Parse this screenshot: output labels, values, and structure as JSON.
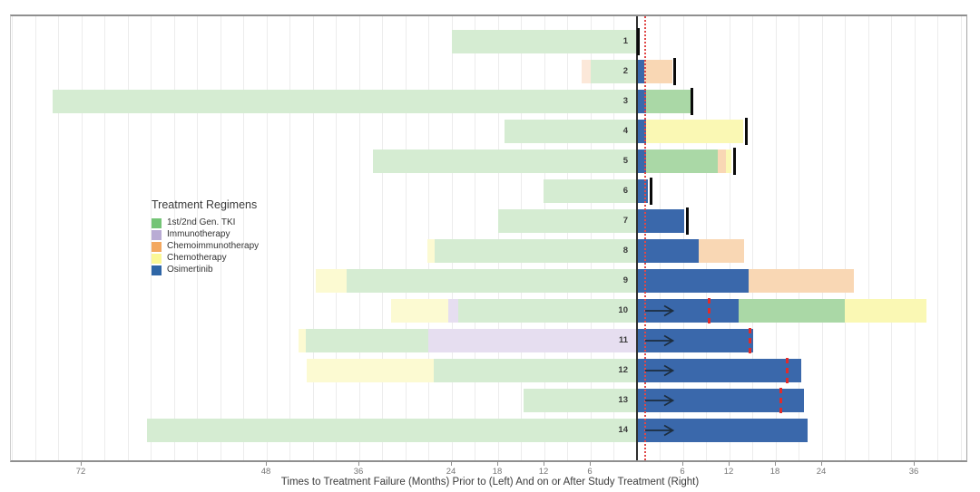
{
  "chart_data": {
    "type": "swimmer",
    "xlabel": "Times to Treatment Failure (Months) Prior to (Left) And on or After Study Treatment (Right)",
    "x_axis": {
      "left_tick_labels": [
        72,
        48,
        36,
        24,
        18,
        12,
        6
      ],
      "right_tick_labels": [
        6,
        12,
        18,
        24,
        36
      ],
      "range_months": [
        -81.2,
        42.9
      ],
      "minor_grid_step_months": 3,
      "zero_line_month": 0,
      "reference_line_month": 1,
      "grid": true
    },
    "legend": {
      "title": "Treatment Regimens",
      "position": "middle-left",
      "items": [
        {
          "key": "tki",
          "label": "1st/2nd Gen. TKI"
        },
        {
          "key": "immunotherapy",
          "label": "Immunotherapy"
        },
        {
          "key": "chemoimmunotherapy",
          "label": "Chemoimmunotherapy"
        },
        {
          "key": "chemotherapy",
          "label": "Chemotherapy"
        },
        {
          "key": "osimertinib",
          "label": "Osimertinib"
        }
      ]
    },
    "colors": {
      "legend": {
        "tki": "#74c476",
        "immunotherapy": "#b9abd4",
        "chemoimmunotherapy": "#f3a860",
        "chemotherapy": "#fbf896",
        "osimertinib": "#2f66a6"
      },
      "prior": {
        "tki": "#d5ecd2",
        "immunotherapy": "#e6def0",
        "chemoimmunotherapy": "#fce8d9",
        "chemotherapy": "#fcfad2",
        "osimertinib": "#3a68ab"
      },
      "post": {
        "tki": "#aad8a6",
        "immunotherapy": "#cfc3e2",
        "chemoimmunotherapy": "#f9d7b4",
        "chemotherapy": "#faf8b4",
        "osimertinib": "#3a68ab"
      },
      "end_tick": "#0a0a0a",
      "progression_dash": "#e02b2b",
      "reference_line": "#e04848",
      "zero_line": "#2e2e2e",
      "grid": "#ececec",
      "arrow": "#1d2d3e"
    },
    "patients": [
      {
        "id": "1",
        "prior": [
          {
            "regimen": "tki",
            "from": -24,
            "to": 0
          }
        ],
        "post": [],
        "end_tick": 0.2,
        "arrow": false,
        "progression": null
      },
      {
        "id": "2",
        "prior": [
          {
            "regimen": "chemoimmunotherapy",
            "from": -7.2,
            "to": -6
          },
          {
            "regimen": "tki",
            "from": -6,
            "to": 0
          }
        ],
        "post": [
          {
            "regimen": "osimertinib",
            "from": 0,
            "to": 0.9
          },
          {
            "regimen": "chemoimmunotherapy",
            "from": 0.9,
            "to": 4.6
          }
        ],
        "end_tick": 4.9,
        "arrow": false,
        "progression": null
      },
      {
        "id": "3",
        "prior": [
          {
            "regimen": "tki",
            "from": -75.8,
            "to": 0
          }
        ],
        "post": [
          {
            "regimen": "osimertinib",
            "from": 0,
            "to": 1.2
          },
          {
            "regimen": "tki",
            "from": 1.2,
            "to": 6.9
          }
        ],
        "end_tick": 7.1,
        "arrow": false,
        "progression": null
      },
      {
        "id": "4",
        "prior": [
          {
            "regimen": "tki",
            "from": -17.2,
            "to": 0
          }
        ],
        "post": [
          {
            "regimen": "osimertinib",
            "from": 0,
            "to": 1.2
          },
          {
            "regimen": "chemotherapy",
            "from": 1.2,
            "to": 13.8
          }
        ],
        "end_tick": 14.2,
        "arrow": false,
        "progression": null
      },
      {
        "id": "5",
        "prior": [
          {
            "regimen": "tki",
            "from": -34.2,
            "to": 0
          }
        ],
        "post": [
          {
            "regimen": "osimertinib",
            "from": 0,
            "to": 1.2
          },
          {
            "regimen": "tki",
            "from": 1.2,
            "to": 10.5
          },
          {
            "regimen": "chemoimmunotherapy",
            "from": 10.5,
            "to": 11.5
          },
          {
            "regimen": "chemotherapy",
            "from": 11.5,
            "to": 12.2
          }
        ],
        "end_tick": 12.7,
        "arrow": false,
        "progression": null
      },
      {
        "id": "6",
        "prior": [
          {
            "regimen": "tki",
            "from": -12.1,
            "to": 0
          }
        ],
        "post": [
          {
            "regimen": "osimertinib",
            "from": 0,
            "to": 1.4
          }
        ],
        "end_tick": 1.8,
        "arrow": false,
        "progression": null
      },
      {
        "id": "7",
        "prior": [
          {
            "regimen": "tki",
            "from": -18,
            "to": 0
          }
        ],
        "post": [
          {
            "regimen": "osimertinib",
            "from": 0,
            "to": 6.1
          }
        ],
        "end_tick": 6.5,
        "arrow": false,
        "progression": null
      },
      {
        "id": "8",
        "prior": [
          {
            "regimen": "chemotherapy",
            "from": -27.2,
            "to": -26.2
          },
          {
            "regimen": "tki",
            "from": -26.2,
            "to": 0
          }
        ],
        "post": [
          {
            "regimen": "osimertinib",
            "from": 0,
            "to": 8
          },
          {
            "regimen": "chemoimmunotherapy",
            "from": 8,
            "to": 13.9
          }
        ],
        "end_tick": null,
        "arrow": false,
        "progression": null
      },
      {
        "id": "9",
        "prior": [
          {
            "regimen": "chemotherapy",
            "from": -41.6,
            "to": -37.6
          },
          {
            "regimen": "tki",
            "from": -37.6,
            "to": 0
          }
        ],
        "post": [
          {
            "regimen": "osimertinib",
            "from": 0,
            "to": 14.5
          },
          {
            "regimen": "chemoimmunotherapy",
            "from": 14.5,
            "to": 28.1
          }
        ],
        "end_tick": null,
        "arrow": false,
        "progression": null
      },
      {
        "id": "10",
        "prior": [
          {
            "regimen": "chemotherapy",
            "from": -31.9,
            "to": -24.5
          },
          {
            "regimen": "immunotherapy",
            "from": -24.5,
            "to": -23.2
          },
          {
            "regimen": "tki",
            "from": -23.2,
            "to": 0
          }
        ],
        "post": [
          {
            "regimen": "osimertinib",
            "from": 0,
            "to": 13.2
          },
          {
            "regimen": "tki",
            "from": 13.2,
            "to": 26.9
          },
          {
            "regimen": "chemotherapy",
            "from": 26.9,
            "to": 37.5
          }
        ],
        "end_tick": null,
        "arrow": true,
        "progression": 9.3
      },
      {
        "id": "11",
        "prior": [
          {
            "regimen": "chemotherapy",
            "from": -43.9,
            "to": -42.9
          },
          {
            "regimen": "tki",
            "from": -42.9,
            "to": -27.1
          },
          {
            "regimen": "immunotherapy",
            "from": -27.1,
            "to": 0
          }
        ],
        "post": [
          {
            "regimen": "osimertinib",
            "from": 0,
            "to": 15.1
          }
        ],
        "end_tick": null,
        "arrow": true,
        "progression": 14.7
      },
      {
        "id": "12",
        "prior": [
          {
            "regimen": "chemotherapy",
            "from": -42.8,
            "to": -26.4
          },
          {
            "regimen": "tki",
            "from": -26.4,
            "to": 0
          }
        ],
        "post": [
          {
            "regimen": "osimertinib",
            "from": 0,
            "to": 21.3
          }
        ],
        "end_tick": null,
        "arrow": true,
        "progression": 19.5
      },
      {
        "id": "13",
        "prior": [
          {
            "regimen": "tki",
            "from": -14.7,
            "to": 0
          }
        ],
        "post": [
          {
            "regimen": "osimertinib",
            "from": 0,
            "to": 21.6
          }
        ],
        "end_tick": null,
        "arrow": true,
        "progression": 18.7
      },
      {
        "id": "14",
        "prior": [
          {
            "regimen": "tki",
            "from": -63.5,
            "to": 0
          }
        ],
        "post": [
          {
            "regimen": "osimertinib",
            "from": 0,
            "to": 22.1
          }
        ],
        "end_tick": null,
        "arrow": true,
        "progression": null
      }
    ]
  }
}
